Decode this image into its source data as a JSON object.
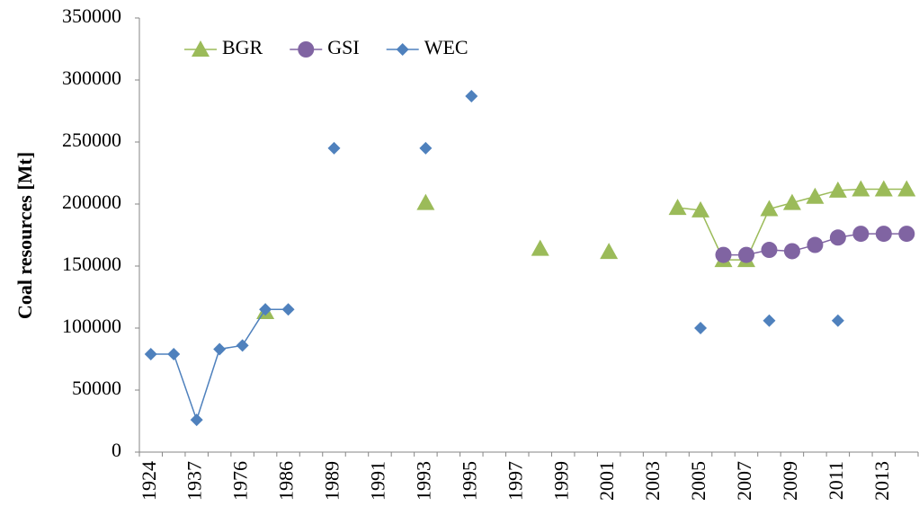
{
  "chart_data": {
    "type": "line",
    "y_label": "Coal resources [Mt]",
    "categories": [
      "1924",
      null,
      "1937",
      null,
      "1976",
      null,
      "1986",
      null,
      "1989",
      null,
      "1991",
      null,
      "1993",
      null,
      "1995",
      null,
      "1997",
      null,
      "1999",
      null,
      "2001",
      null,
      "2003",
      null,
      "2005",
      null,
      "2007",
      null,
      "2009",
      null,
      "2011",
      null,
      "2013",
      null
    ],
    "series": [
      {
        "name": "BGR",
        "color": "#9bbb59",
        "marker": "triangle",
        "values": [
          null,
          null,
          null,
          null,
          null,
          113000,
          null,
          null,
          null,
          null,
          null,
          null,
          201000,
          null,
          null,
          null,
          null,
          164000,
          null,
          null,
          161500,
          null,
          null,
          197000,
          195000,
          155000,
          155000,
          196000,
          201000,
          206000,
          211000,
          212000,
          212000,
          212000
        ]
      },
      {
        "name": "GSI",
        "color": "#8064a2",
        "marker": "circle",
        "values": [
          null,
          null,
          null,
          null,
          null,
          null,
          null,
          null,
          null,
          null,
          null,
          null,
          null,
          null,
          null,
          null,
          null,
          null,
          null,
          null,
          null,
          null,
          null,
          null,
          null,
          159000,
          159000,
          163000,
          162000,
          167000,
          173000,
          176000,
          176000,
          176000
        ]
      },
      {
        "name": "WEC",
        "color": "#4f81bd",
        "marker": "diamond",
        "values": [
          79000,
          79000,
          26000,
          83000,
          86000,
          115000,
          115000,
          null,
          245000,
          null,
          null,
          null,
          245000,
          null,
          287000,
          null,
          null,
          null,
          null,
          null,
          null,
          null,
          null,
          null,
          100000,
          null,
          null,
          106000,
          null,
          null,
          106000,
          null,
          null,
          null
        ]
      }
    ],
    "ylim": [
      0,
      350000
    ],
    "yticks": [
      0,
      50000,
      100000,
      150000,
      200000,
      250000,
      300000,
      350000
    ],
    "legend": "top-left"
  }
}
